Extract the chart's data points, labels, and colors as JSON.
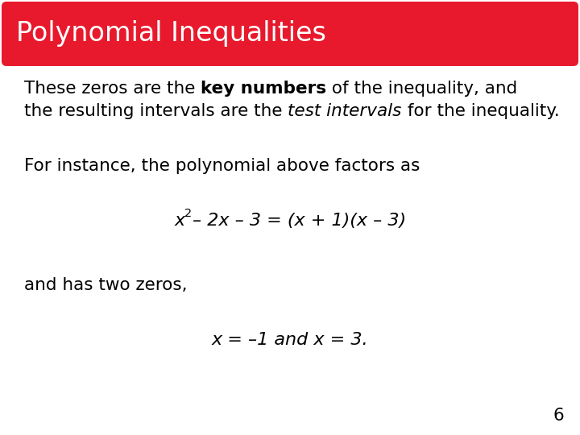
{
  "title": "Polynomial Inequalities",
  "title_bg_color": "#E8192C",
  "title_text_color": "#FFFFFF",
  "title_fontsize": 24,
  "body_bg_color": "#FFFFFF",
  "body_text_color": "#000000",
  "body_fontsize": 15.5,
  "page_number": "6",
  "line1_part1": "These zeros are the ",
  "line1_bold": "key numbers",
  "line1_part2": " of the inequality, and",
  "line2_part1": "the resulting intervals are the ",
  "line2_italic": "test intervals",
  "line2_part2": " for the inequality.",
  "line3": "For instance, the polynomial above factors as",
  "line5": "and has two zeros,"
}
